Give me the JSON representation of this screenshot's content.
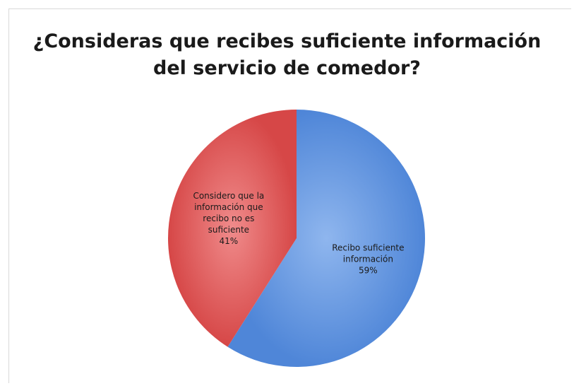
{
  "chart_data": {
    "type": "pie",
    "title_lines": [
      "¿Consideras que recibes suficiente información",
      "del servicio de comedor?"
    ],
    "slices": [
      {
        "label_lines": [
          "Recibo suficiente",
          "información"
        ],
        "value": 59,
        "value_label": "59%",
        "color": "#5b8fd6"
      },
      {
        "label_lines": [
          "Considero que la",
          "información que",
          "recibo no es",
          "suficiente"
        ],
        "value": 41,
        "value_label": "41%",
        "color": "#d9534f"
      }
    ],
    "start_angle_deg": 0,
    "direction": "clockwise"
  }
}
